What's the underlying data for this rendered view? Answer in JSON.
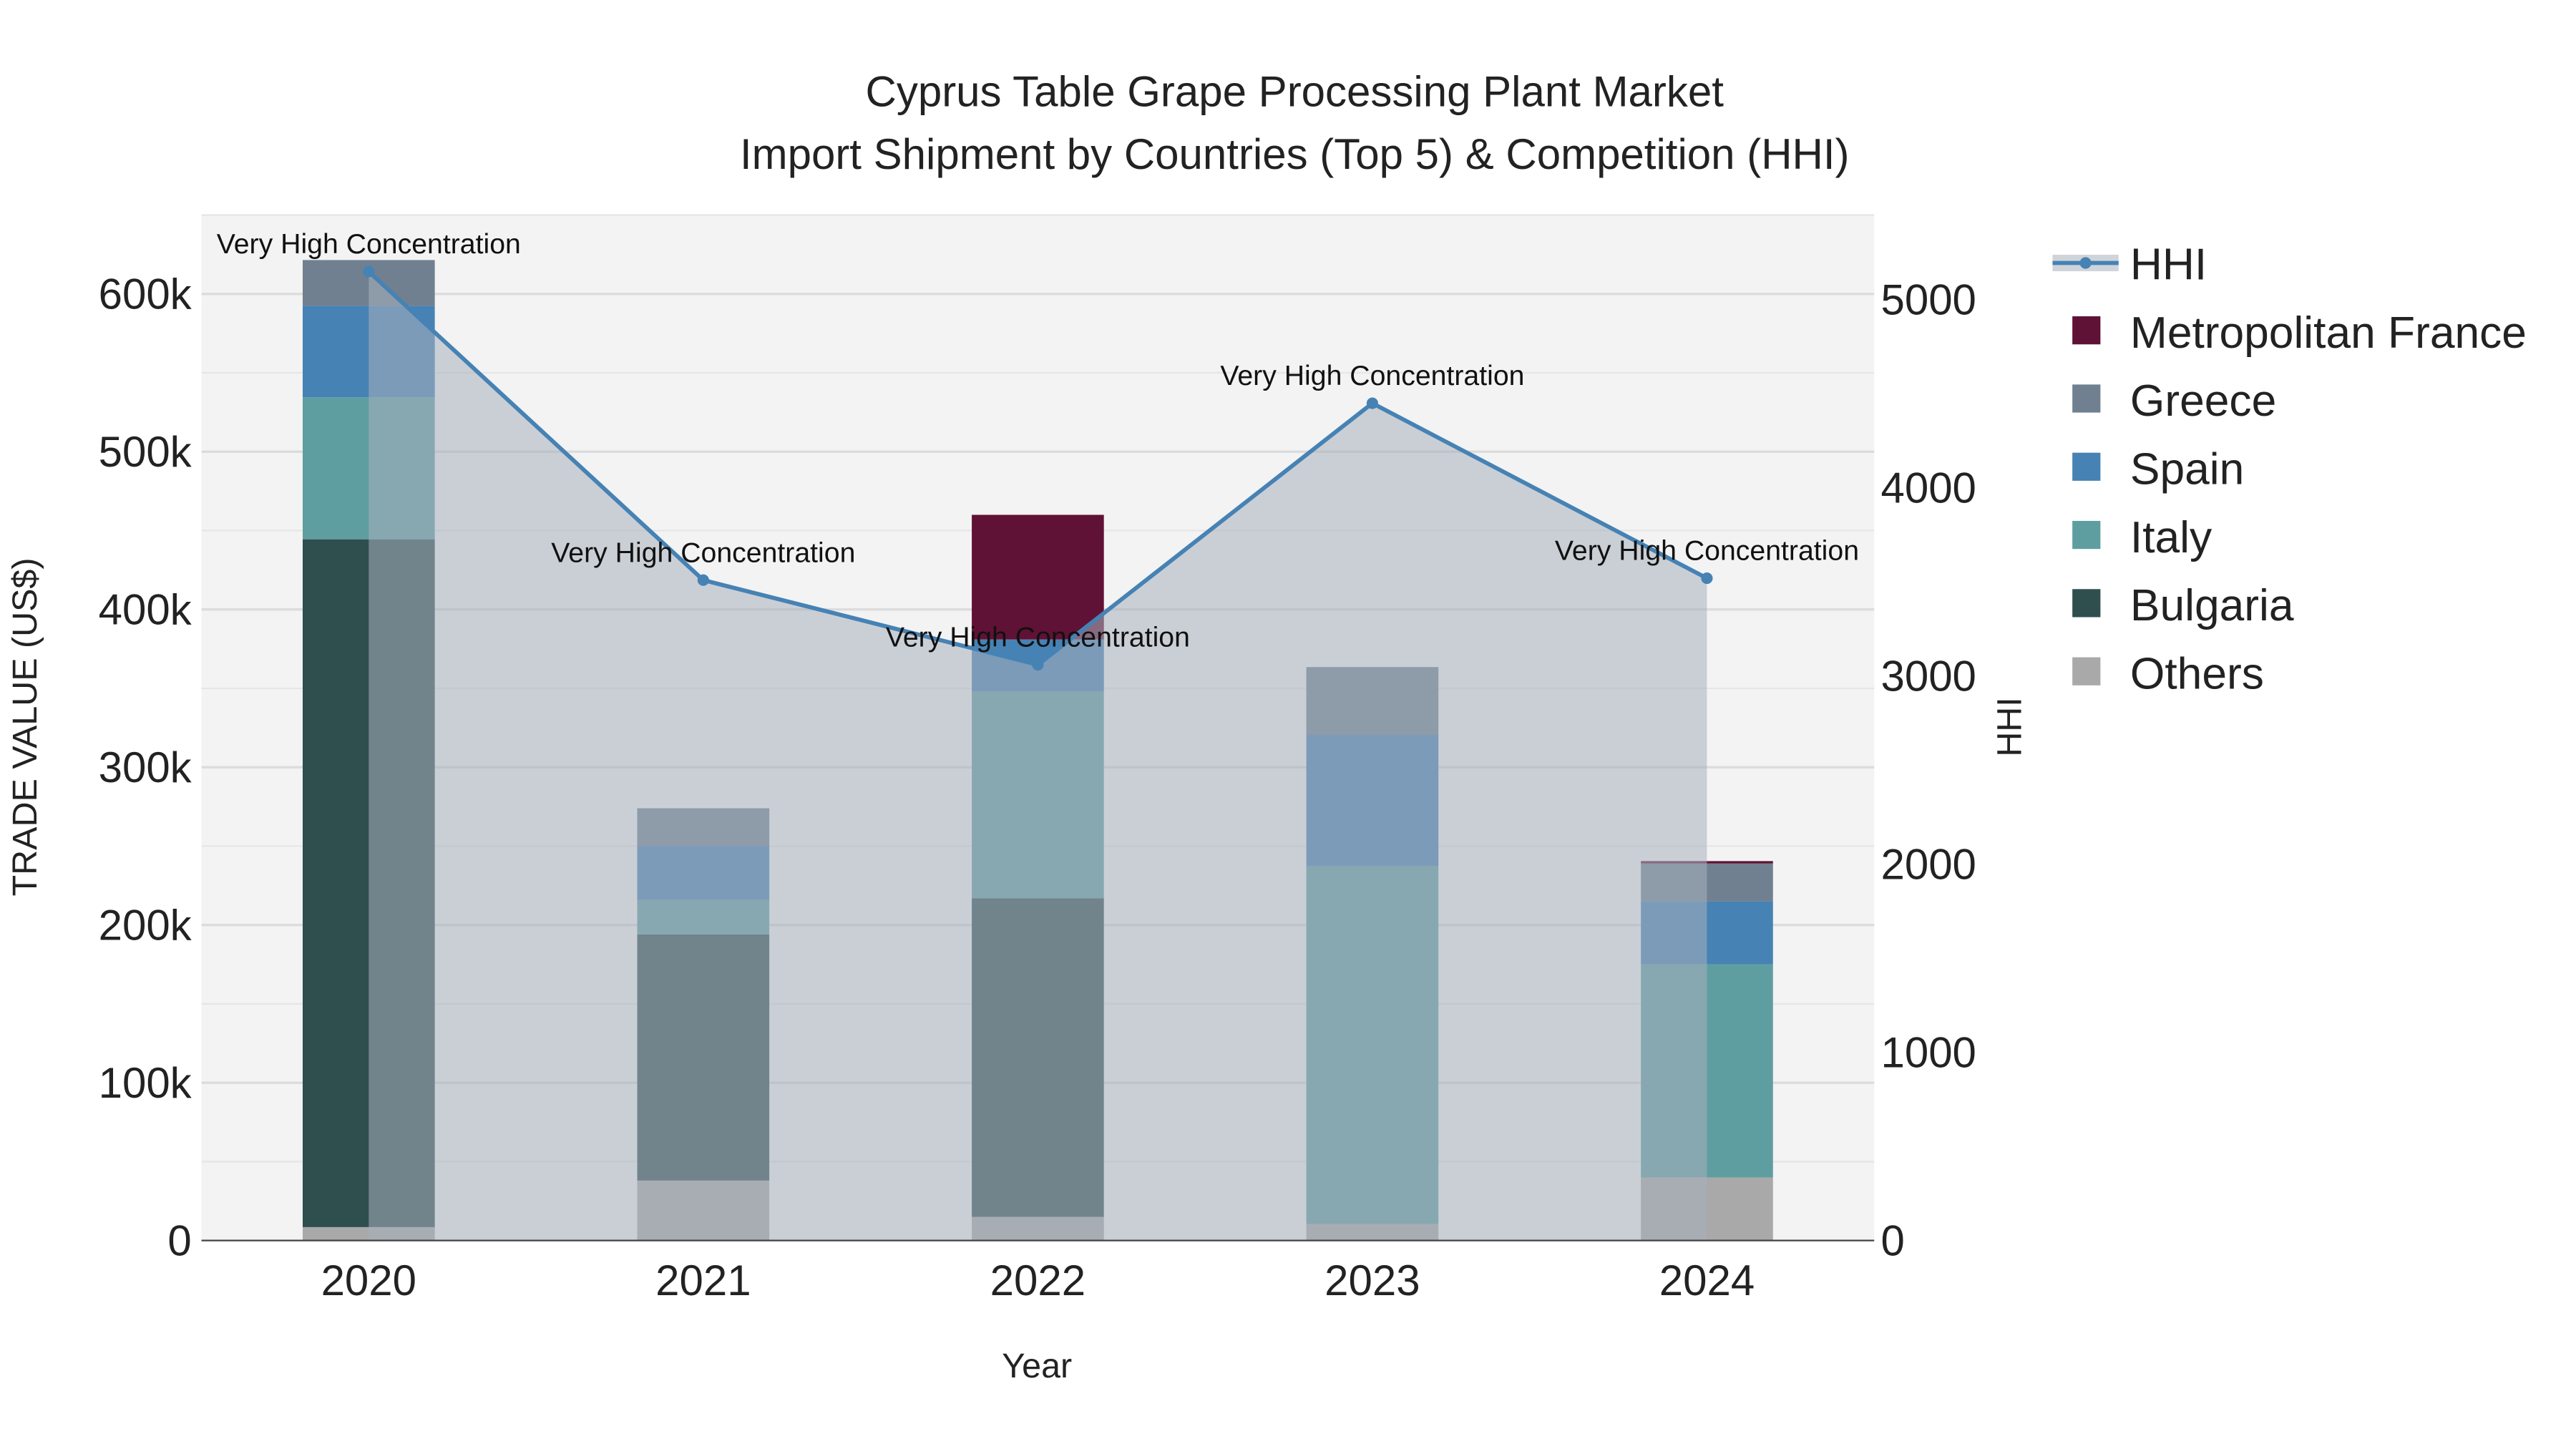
{
  "chart_data": {
    "type": "bar",
    "title": "Cyprus Table Grape Processing Plant Market",
    "subtitle": "Import Shipment by Countries (Top 5) & Competition (HHI)",
    "xlabel": "Year",
    "ylabel": "TRADE VALUE (US$)",
    "y2label": "HHI",
    "categories": [
      "2020",
      "2021",
      "2022",
      "2023",
      "2024"
    ],
    "ylim": [
      0,
      650000
    ],
    "y2lim": [
      0,
      5450
    ],
    "yticks": [
      0,
      100000,
      200000,
      300000,
      400000,
      500000,
      600000
    ],
    "ytick_labels": [
      "0",
      "100k",
      "200k",
      "300k",
      "400k",
      "500k",
      "600k"
    ],
    "y2ticks": [
      0,
      1000,
      2000,
      3000,
      4000,
      5000
    ],
    "y2tick_labels": [
      "0",
      "1000",
      "2000",
      "3000",
      "4000",
      "5000"
    ],
    "stack_order": [
      "Others",
      "Bulgaria",
      "Italy",
      "Spain",
      "Greece",
      "Metropolitan France"
    ],
    "series": [
      {
        "name": "Others",
        "color": "#a9a9a9",
        "values": [
          8500,
          38000,
          15000,
          10500,
          40000
        ]
      },
      {
        "name": "Bulgaria",
        "color": "#2f4f4f",
        "values": [
          436000,
          156000,
          202000,
          0,
          0
        ]
      },
      {
        "name": "Italy",
        "color": "#5f9ea0",
        "values": [
          90000,
          22000,
          131000,
          227000,
          135000
        ]
      },
      {
        "name": "Spain",
        "color": "#4682b4",
        "values": [
          58000,
          34000,
          33000,
          83000,
          40000
        ]
      },
      {
        "name": "Greece",
        "color": "#708090",
        "values": [
          29000,
          24000,
          0,
          43000,
          24000
        ]
      },
      {
        "name": "Metropolitan France",
        "color": "#5f1235",
        "values": [
          0,
          0,
          79000,
          0,
          1500
        ]
      }
    ],
    "hhi": {
      "name": "HHI",
      "color": "#4682b4",
      "values": [
        5150,
        3510,
        3060,
        4450,
        3520
      ]
    },
    "annotations": [
      "Very High Concentration",
      "Very High Concentration",
      "Very High Concentration",
      "Very High Concentration",
      "Very High Concentration"
    ],
    "legend": [
      "HHI",
      "Metropolitan France",
      "Greece",
      "Spain",
      "Italy",
      "Bulgaria",
      "Others"
    ],
    "legend_position": "right",
    "grid": true
  }
}
